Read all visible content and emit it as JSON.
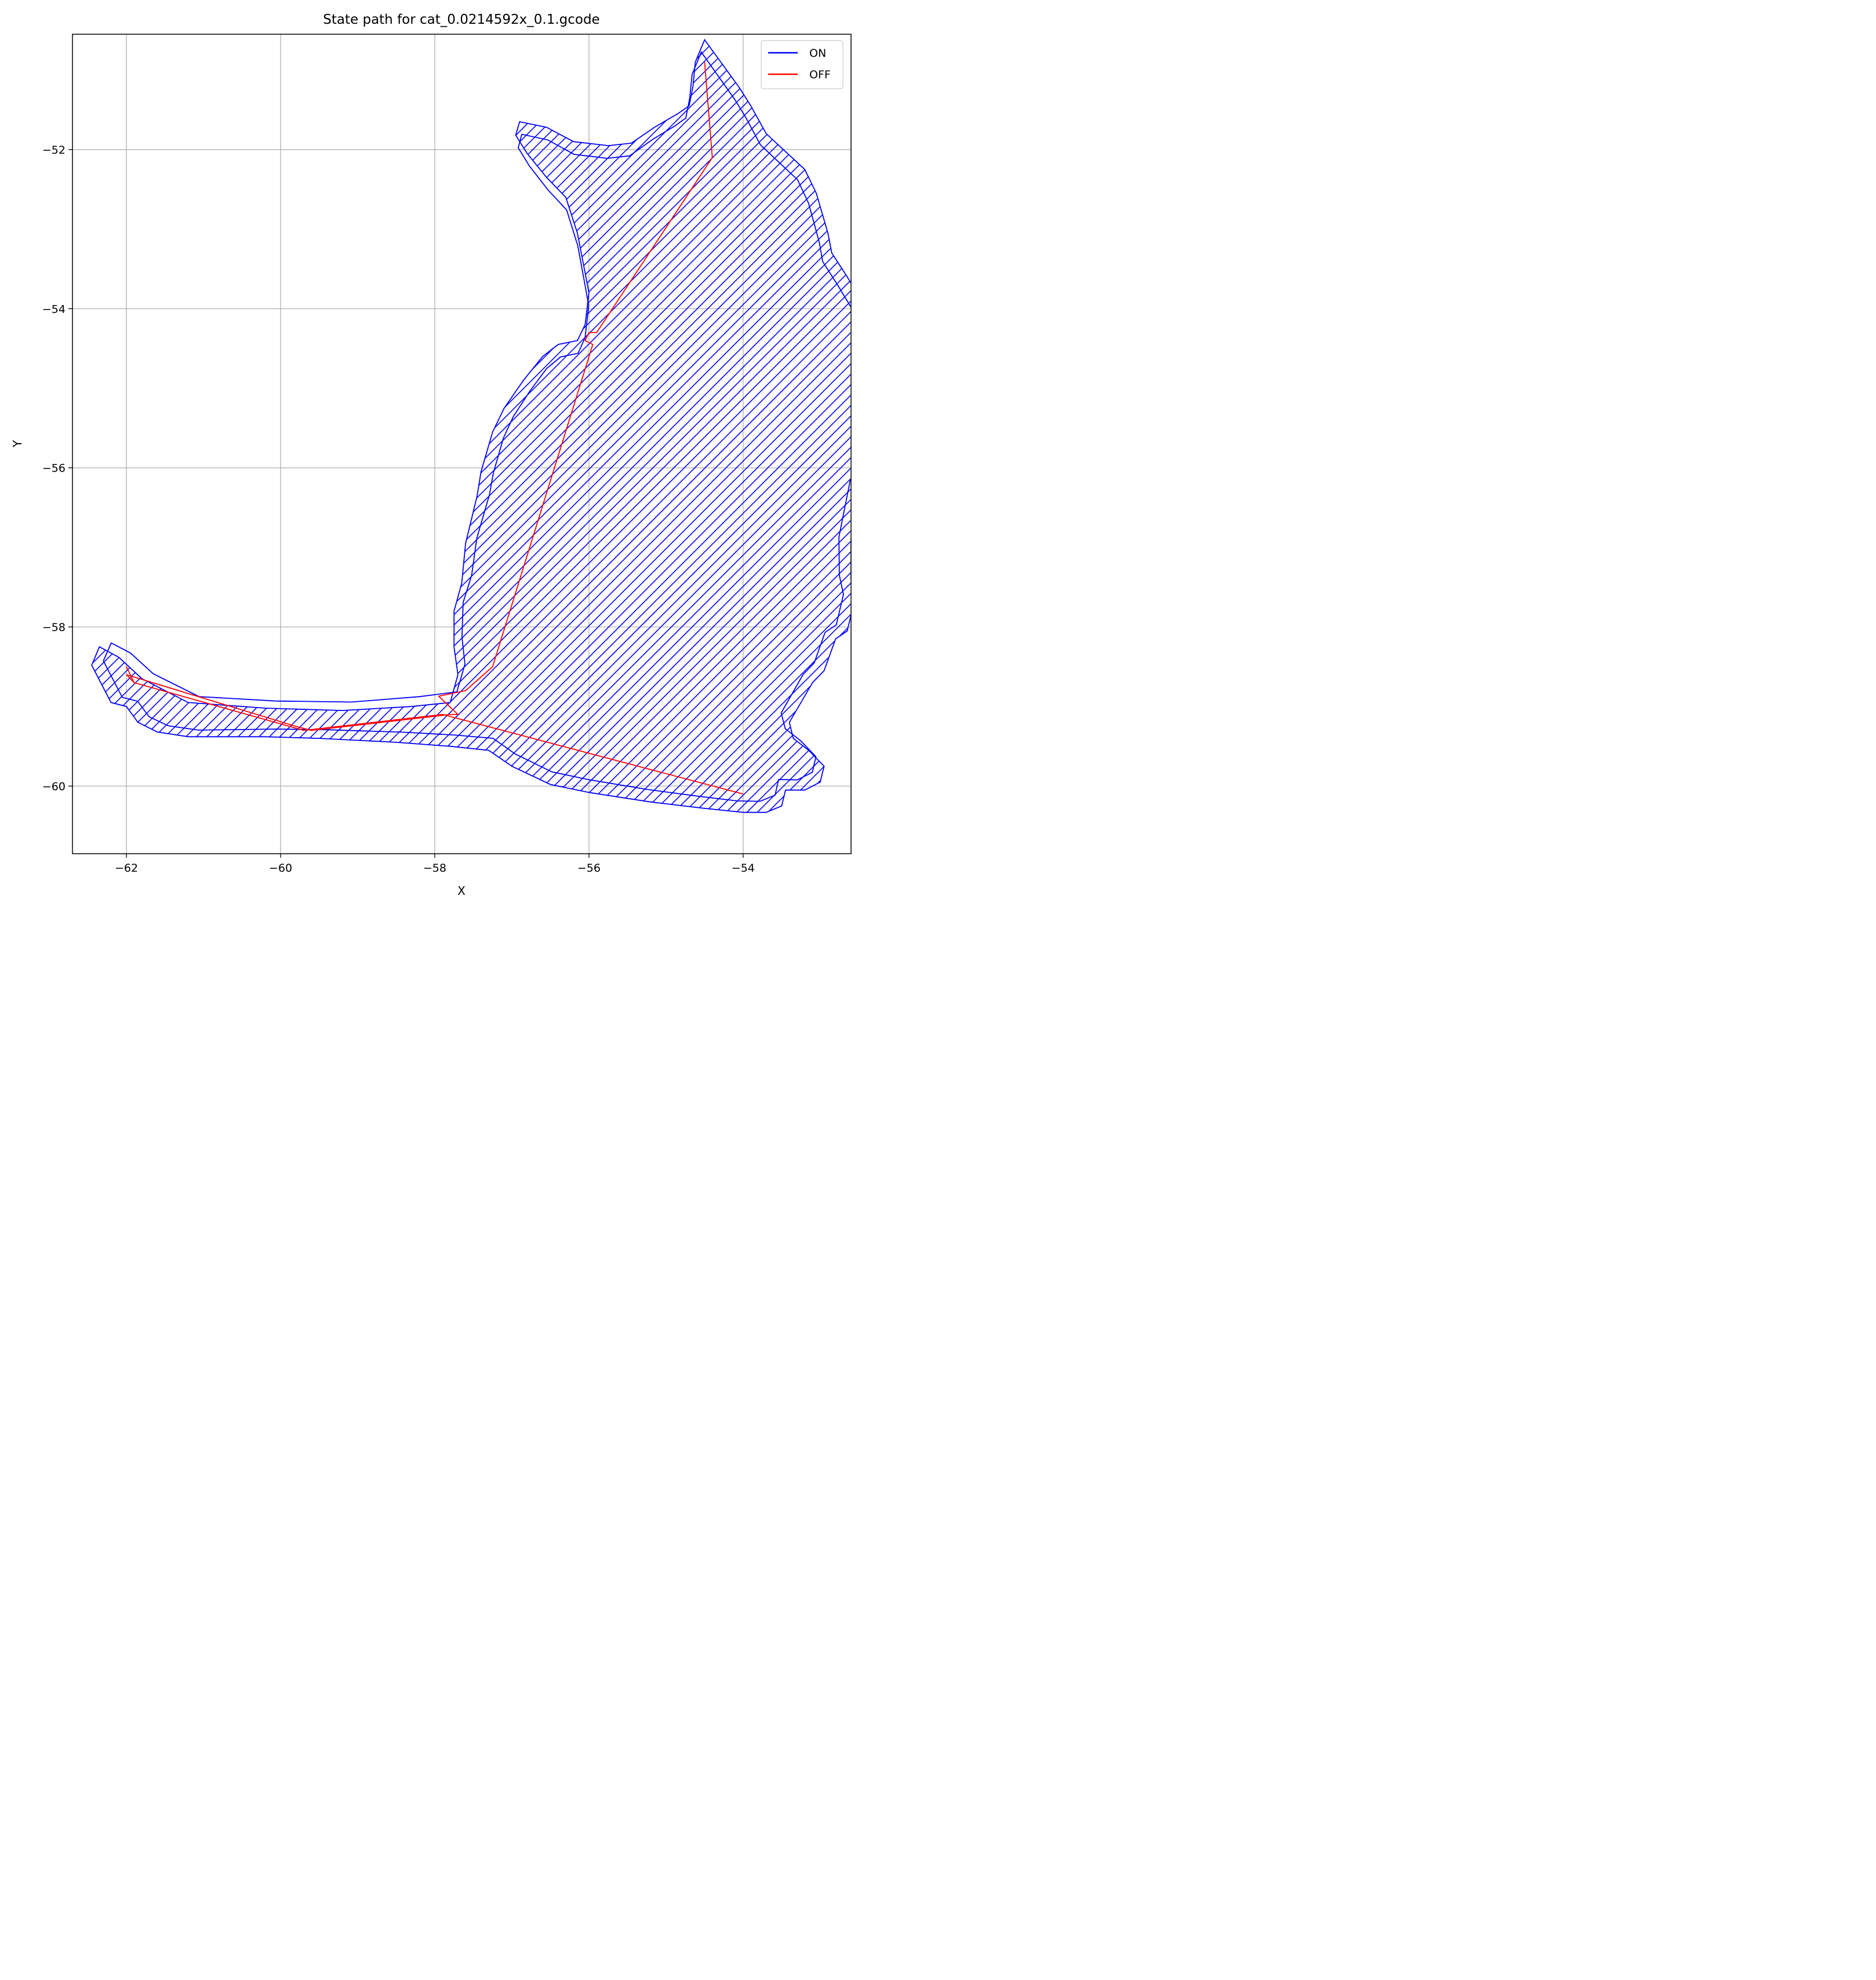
{
  "chart_data": {
    "type": "line",
    "title": "State path for cat_0.0214592x_0.1.gcode",
    "xlabel": "X",
    "ylabel": "Y",
    "xlim": [
      -62.7,
      -52.6
    ],
    "ylim": [
      -60.85,
      -50.55
    ],
    "xticks": [
      -62,
      -60,
      -58,
      -56,
      -54
    ],
    "yticks": [
      -52,
      -54,
      -56,
      -58,
      -60
    ],
    "tick_labels": {
      "x": [
        "−62",
        "−60",
        "−58",
        "−56",
        "−54"
      ],
      "y": [
        "−52",
        "−54",
        "−56",
        "−58",
        "−60"
      ]
    },
    "grid": true,
    "legend": {
      "position": "top-right",
      "entries": [
        "ON",
        "OFF"
      ]
    },
    "colors": {
      "ON": "#0000ff",
      "OFF": "#ff0000",
      "grid": "#b0b0b0"
    },
    "series": [
      {
        "name": "ON",
        "outer_contour": [
          [
            -54.5,
            -50.62
          ],
          [
            -54.05,
            -51.22
          ],
          [
            -53.9,
            -51.45
          ],
          [
            -53.7,
            -51.8
          ],
          [
            -53.2,
            -52.25
          ],
          [
            -53.05,
            -52.55
          ],
          [
            -52.9,
            -53.05
          ],
          [
            -52.85,
            -53.3
          ],
          [
            -52.65,
            -53.6
          ],
          [
            -52.4,
            -54.0
          ],
          [
            -52.2,
            -54.2
          ],
          [
            -52.2,
            -55.25
          ],
          [
            -52.35,
            -55.95
          ],
          [
            -52.45,
            -56.15
          ],
          [
            -52.6,
            -56.9
          ],
          [
            -52.6,
            -57.4
          ],
          [
            -52.55,
            -57.65
          ],
          [
            -52.65,
            -58.05
          ],
          [
            -52.8,
            -58.15
          ],
          [
            -52.95,
            -58.55
          ],
          [
            -53.1,
            -58.7
          ],
          [
            -53.4,
            -59.2
          ],
          [
            -53.35,
            -59.4
          ],
          [
            -53.15,
            -59.55
          ],
          [
            -52.95,
            -59.75
          ],
          [
            -53.0,
            -59.95
          ],
          [
            -53.2,
            -60.05
          ],
          [
            -53.45,
            -60.05
          ],
          [
            -53.5,
            -60.25
          ],
          [
            -53.7,
            -60.33
          ],
          [
            -54.0,
            -60.33
          ],
          [
            -54.5,
            -60.28
          ],
          [
            -55.2,
            -60.2
          ],
          [
            -56.0,
            -60.08
          ],
          [
            -56.5,
            -59.98
          ],
          [
            -57.0,
            -59.75
          ],
          [
            -57.3,
            -59.55
          ],
          [
            -57.8,
            -59.5
          ],
          [
            -58.5,
            -59.45
          ],
          [
            -59.5,
            -59.4
          ],
          [
            -60.2,
            -59.38
          ],
          [
            -61.2,
            -59.38
          ],
          [
            -61.6,
            -59.32
          ],
          [
            -61.85,
            -59.2
          ],
          [
            -62.0,
            -59.0
          ],
          [
            -62.2,
            -58.95
          ],
          [
            -62.45,
            -58.48
          ],
          [
            -62.35,
            -58.25
          ],
          [
            -62.1,
            -58.38
          ],
          [
            -61.8,
            -58.65
          ],
          [
            -61.2,
            -58.95
          ],
          [
            -60.2,
            -59.02
          ],
          [
            -59.2,
            -59.05
          ],
          [
            -58.3,
            -59.0
          ],
          [
            -57.8,
            -58.95
          ],
          [
            -57.7,
            -58.6
          ],
          [
            -57.75,
            -58.25
          ],
          [
            -57.75,
            -57.8
          ],
          [
            -57.65,
            -57.45
          ],
          [
            -57.6,
            -56.95
          ],
          [
            -57.45,
            -56.35
          ],
          [
            -57.4,
            -56.05
          ],
          [
            -57.25,
            -55.55
          ],
          [
            -57.1,
            -55.25
          ],
          [
            -56.85,
            -54.9
          ],
          [
            -56.6,
            -54.6
          ],
          [
            -56.4,
            -54.45
          ],
          [
            -56.15,
            -54.4
          ],
          [
            -56.05,
            -54.2
          ],
          [
            -56.0,
            -53.8
          ],
          [
            -56.05,
            -53.55
          ],
          [
            -56.15,
            -53.05
          ],
          [
            -56.3,
            -52.6
          ],
          [
            -56.55,
            -52.35
          ],
          [
            -56.8,
            -52.05
          ],
          [
            -56.95,
            -51.82
          ],
          [
            -56.9,
            -51.65
          ],
          [
            -56.55,
            -51.72
          ],
          [
            -56.2,
            -51.9
          ],
          [
            -55.75,
            -51.95
          ],
          [
            -55.45,
            -51.92
          ],
          [
            -55.15,
            -51.72
          ],
          [
            -54.85,
            -51.55
          ],
          [
            -54.7,
            -51.45
          ],
          [
            -54.65,
            -51.2
          ],
          [
            -54.62,
            -50.9
          ],
          [
            -54.5,
            -50.62
          ]
        ]
      },
      {
        "name": "OFF",
        "points": [
          [
            -54.5,
            -50.9
          ],
          [
            -54.4,
            -52.1
          ],
          [
            -56.5,
            -54.6
          ],
          [
            -56.5,
            -54.65
          ],
          [
            -57.5,
            -58.3
          ],
          [
            -57.5,
            -58.7
          ],
          [
            -57.5,
            -58.75
          ],
          [
            -57.85,
            -59.1
          ],
          [
            -57.8,
            -59.1
          ],
          [
            -57.8,
            -59.1
          ],
          [
            -54.0,
            -60.1
          ],
          [
            -54.0,
            -60.1
          ]
        ],
        "path": [
          [
            -54.5,
            -50.9
          ],
          [
            -54.4,
            -52.1
          ],
          [
            -55.9,
            -54.3
          ],
          [
            -56.0,
            -54.3
          ],
          [
            -56.05,
            -54.4
          ],
          [
            -55.95,
            -54.45
          ],
          [
            -57.25,
            -58.5
          ],
          [
            -57.6,
            -58.8
          ],
          [
            -57.95,
            -58.87
          ],
          [
            -57.7,
            -59.1
          ],
          [
            -57.8,
            -59.1
          ],
          [
            -59.6,
            -59.3
          ],
          [
            -59.8,
            -59.25
          ],
          [
            -62.0,
            -58.6
          ],
          [
            -61.9,
            -58.7
          ],
          [
            -62.0,
            -58.5
          ],
          [
            -61.9,
            -58.7
          ],
          [
            -59.7,
            -59.3
          ],
          [
            -57.9,
            -59.1
          ],
          [
            -54.0,
            -60.1
          ],
          [
            -54.0,
            -60.1
          ]
        ]
      }
    ]
  }
}
